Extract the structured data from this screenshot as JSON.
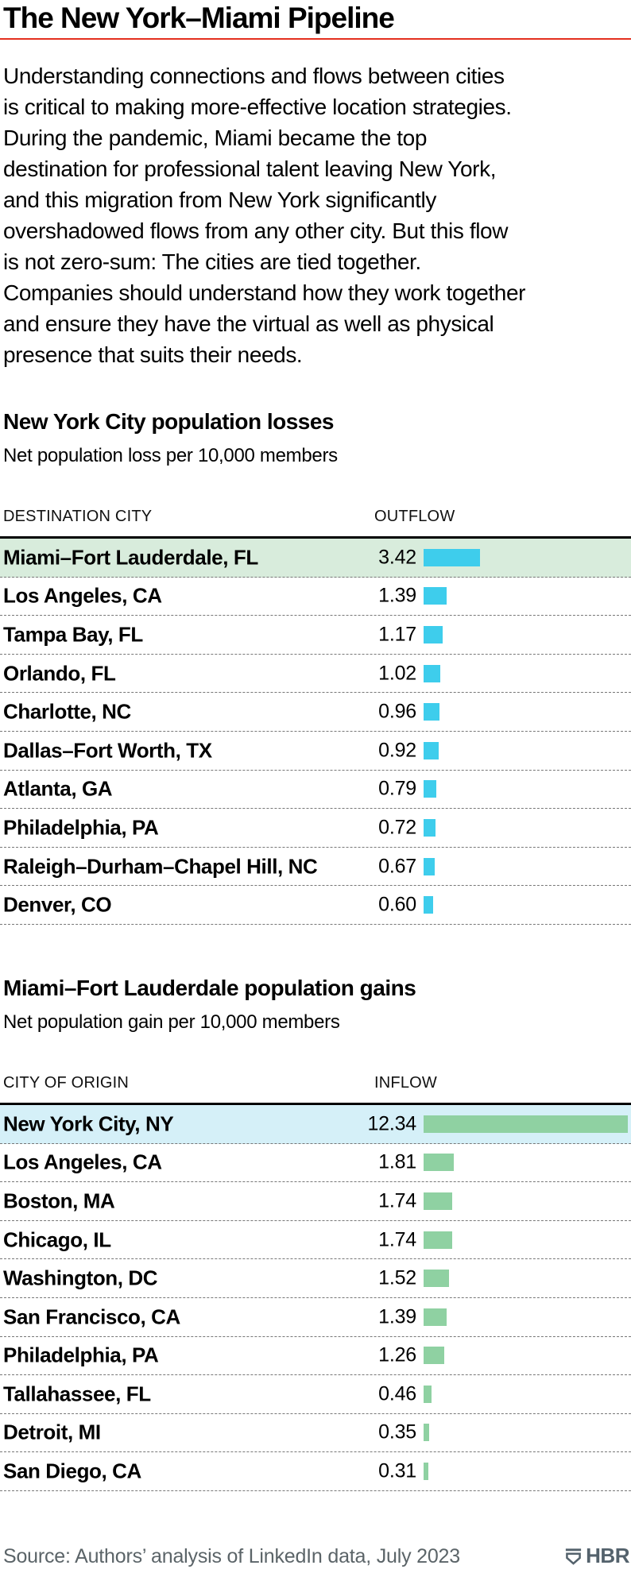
{
  "page": {
    "title": "The New York–Miami Pipeline",
    "accent_color": "#e4301f",
    "intro_lines": [
      "Understanding connections and flows between cities",
      "is critical to making more-effective location strategies.",
      "During the pandemic, Miami became the top",
      "destination for professional talent leaving New York,",
      "and this migration from New York significantly",
      "overshadowed flows from any other city. But this flow",
      "is not zero-sum: The cities are tied together.",
      "Companies should understand how they work together",
      "and ensure they have the virtual as well as physical",
      "presence that suits their needs."
    ]
  },
  "chart_data": [
    {
      "type": "bar",
      "title": "New York City population losses",
      "subtitle": "Net population loss per 10,000 members",
      "columns": [
        "DESTINATION CITY",
        "OUTFLOW"
      ],
      "categories": [
        "Miami–Fort Lauderdale, FL",
        "Los Angeles, CA",
        "Tampa Bay, FL",
        "Orlando, FL",
        "Charlotte, NC",
        "Dallas–Fort Worth, TX",
        "Atlanta, GA",
        "Philadelphia, PA",
        "Raleigh–Durham–Chapel Hill, NC",
        "Denver, CO"
      ],
      "values": [
        "3.42",
        "1.39",
        "1.17",
        "1.02",
        "0.96",
        "0.92",
        "0.79",
        "0.72",
        "0.67",
        "0.60"
      ],
      "bar_color": "#3ecdec",
      "highlight_row": 0,
      "highlight_color": "#d8ecdc",
      "xlim": [
        0,
        12.34
      ],
      "legend": "none",
      "grid": "dashed row separators"
    },
    {
      "type": "bar",
      "title": "Miami–Fort Lauderdale population gains",
      "subtitle": "Net population gain per 10,000 members",
      "columns": [
        "CITY OF ORIGIN",
        "INFLOW"
      ],
      "categories": [
        "New York City, NY",
        "Los Angeles, CA",
        "Boston, MA",
        "Chicago, IL",
        "Washington, DC",
        "San Francisco, CA",
        "Philadelphia, PA",
        "Tallahassee, FL",
        "Detroit, MI",
        "San Diego, CA"
      ],
      "values": [
        "12.34",
        "1.81",
        "1.74",
        "1.74",
        "1.52",
        "1.39",
        "1.26",
        "0.46",
        "0.35",
        "0.31"
      ],
      "bar_color": "#8fd1a2",
      "highlight_row": 0,
      "highlight_color": "#d5f0f8",
      "xlim": [
        0,
        12.34
      ],
      "legend": "none",
      "grid": "dashed row separators"
    }
  ],
  "footer": {
    "source": "Source: Authors’ analysis of LinkedIn data, July 2023",
    "logo_text": "HBR",
    "logo_color": "#54626c"
  }
}
